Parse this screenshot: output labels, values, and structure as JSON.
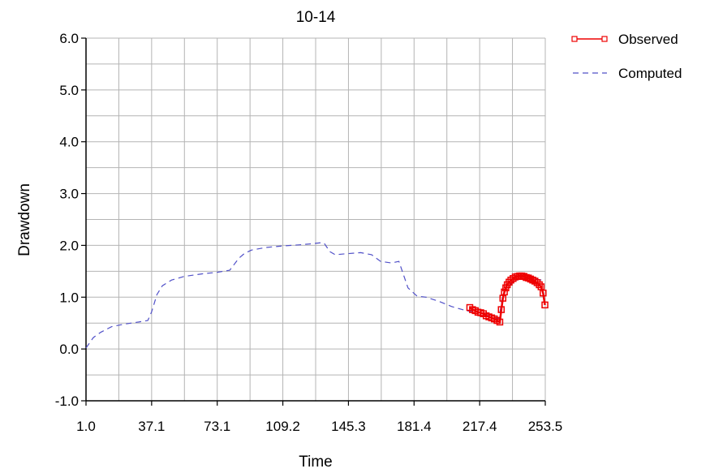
{
  "chart_data": {
    "type": "line",
    "title": "10-14",
    "xlabel": "Time",
    "ylabel": "Drawdown",
    "xlim": [
      1.0,
      253.5
    ],
    "ylim": [
      -1.0,
      6.0
    ],
    "x_ticks": [
      "1.0",
      "37.1",
      "73.1",
      "109.2",
      "145.3",
      "181.4",
      "217.4",
      "253.5"
    ],
    "y_ticks": [
      "-1.0",
      "0.0",
      "1.0",
      "2.0",
      "3.0",
      "4.0",
      "5.0",
      "6.0"
    ],
    "grid": true,
    "legend_position": "top-right outside",
    "series": [
      {
        "name": "Observed",
        "color": "#ee0000",
        "style": "solid line with square markers",
        "x": [
          212.0,
          213.5,
          215.0,
          216.5,
          218.0,
          219.5,
          221.0,
          222.5,
          224.0,
          225.5,
          227.0,
          228.5,
          229.3,
          230.2,
          231.0,
          231.8,
          232.6,
          233.6,
          234.6,
          235.8,
          237.0,
          238.2,
          239.4,
          240.6,
          241.8,
          243.0,
          244.2,
          245.4,
          246.6,
          247.8,
          249.0,
          250.2,
          251.2,
          252.3,
          253.3
        ],
        "y": [
          0.8,
          0.76,
          0.74,
          0.71,
          0.7,
          0.68,
          0.64,
          0.62,
          0.6,
          0.58,
          0.55,
          0.52,
          0.76,
          0.98,
          1.1,
          1.18,
          1.24,
          1.29,
          1.33,
          1.36,
          1.39,
          1.4,
          1.41,
          1.41,
          1.4,
          1.38,
          1.37,
          1.35,
          1.33,
          1.31,
          1.28,
          1.24,
          1.2,
          1.08,
          0.85
        ]
      },
      {
        "name": "Computed",
        "color": "#5050c8",
        "style": "dashed line",
        "x": [
          1.0,
          5.0,
          9.0,
          15.0,
          22.0,
          30.0,
          35.0,
          37.1,
          40.0,
          43.0,
          48.0,
          55.0,
          65.0,
          73.1,
          80.0,
          85.0,
          88.0,
          92.0,
          100.0,
          109.2,
          118.0,
          125.0,
          130.0,
          132.0,
          135.0,
          138.0,
          145.0,
          152.0,
          158.0,
          163.0,
          169.0,
          173.0,
          178.0,
          183.0,
          188.0,
          195.0,
          202.0,
          210.0,
          217.4,
          221.0,
          225.0,
          228.0,
          230.0,
          232.0,
          236.0,
          240.0,
          245.0,
          250.0,
          253.5
        ],
        "y": [
          0.02,
          0.22,
          0.32,
          0.43,
          0.48,
          0.52,
          0.55,
          0.72,
          1.05,
          1.22,
          1.33,
          1.4,
          1.45,
          1.48,
          1.52,
          1.75,
          1.84,
          1.91,
          1.96,
          1.99,
          2.01,
          2.03,
          2.05,
          2.04,
          1.88,
          1.82,
          1.84,
          1.86,
          1.82,
          1.69,
          1.66,
          1.69,
          1.18,
          1.02,
          1.0,
          0.92,
          0.82,
          0.74,
          0.7,
          0.66,
          0.6,
          0.58,
          1.02,
          1.18,
          1.3,
          1.36,
          1.36,
          1.34,
          1.32
        ]
      }
    ]
  }
}
